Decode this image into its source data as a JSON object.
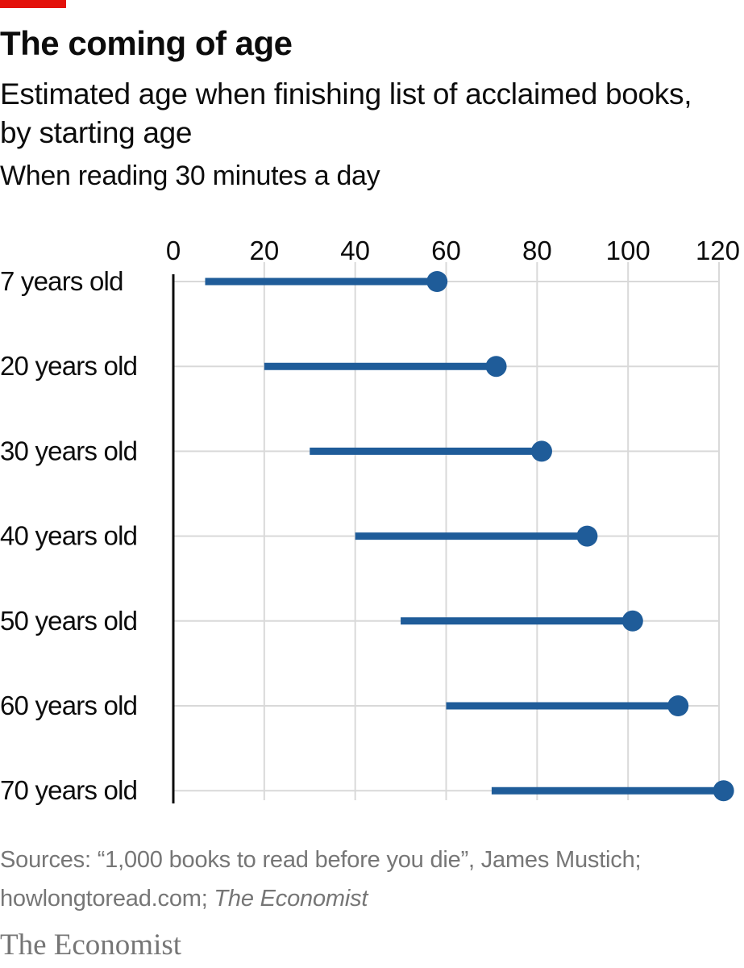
{
  "header": {
    "title": "The coming of age",
    "subtitle": "Estimated age when finishing list of acclaimed books, by starting age",
    "note": "When reading 30 minutes a day"
  },
  "footer": {
    "source_prefix": "Sources: “1,000 books to read before you die”, James Mustich; howlongtoread.com; ",
    "source_italic": "The Economist",
    "brand": "The Economist"
  },
  "colors": {
    "accent_red": "#e3120b",
    "series_blue": "#1f5c99",
    "grid": "#d9d9d9",
    "axis": "#0c0c0c",
    "muted_text": "#767676"
  },
  "chart_data": {
    "type": "dumbbell",
    "title": "The coming of age",
    "subtitle": "Estimated age when finishing list of acclaimed books, by starting age",
    "categories": [
      "7 years old",
      "20 years old",
      "30 years old",
      "40 years old",
      "50 years old",
      "60 years old",
      "70 years old"
    ],
    "series": [
      {
        "name": "",
        "values": [
          7,
          20,
          30,
          40,
          50,
          60,
          70
        ]
      },
      {
        "name": "",
        "values": [
          58,
          71,
          81,
          91,
          101,
          111,
          121
        ]
      }
    ],
    "xlim": [
      0,
      120
    ],
    "xticks": [
      0,
      20,
      40,
      60,
      80,
      100,
      120
    ],
    "xlabel": "",
    "ylabel": "",
    "grid": true,
    "x_axis_position": "top",
    "legend": "none"
  }
}
